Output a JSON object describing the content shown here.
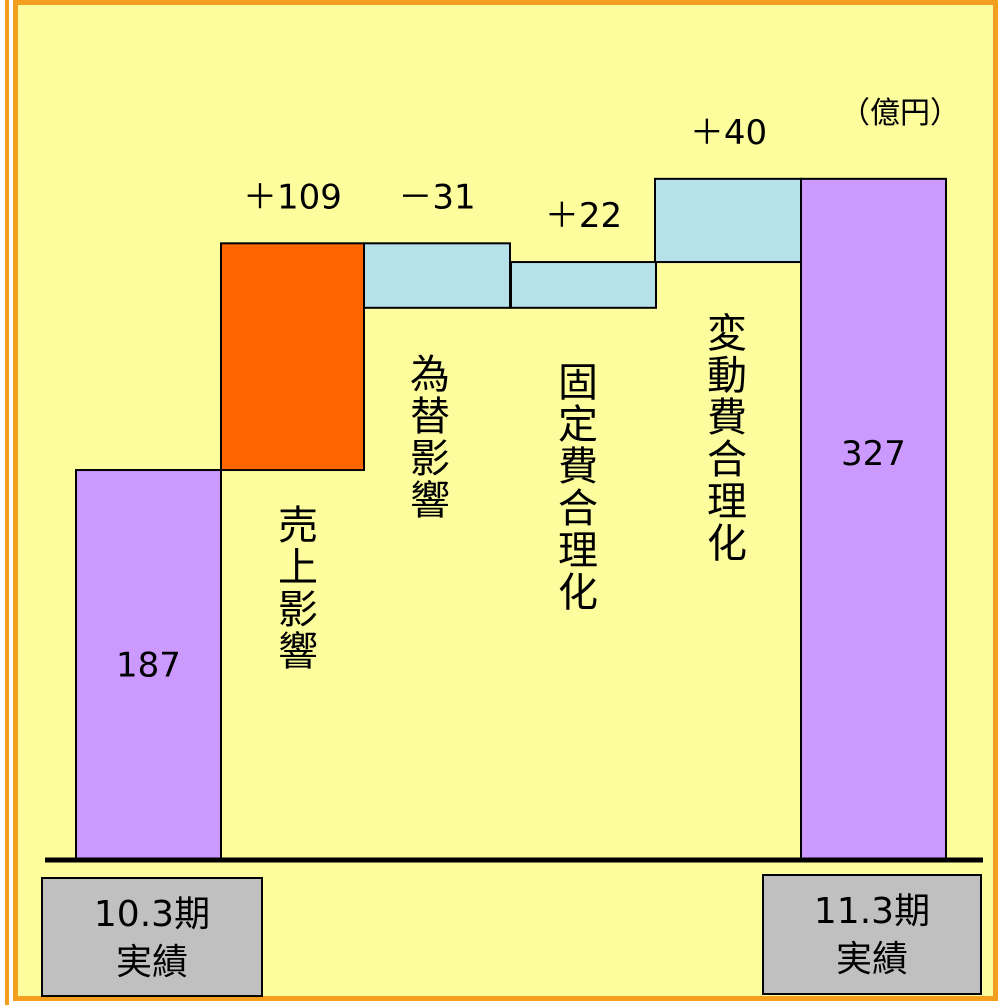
{
  "chart_data": {
    "type": "bar",
    "subtype": "waterfall",
    "unit": "（億円）",
    "steps": [
      {
        "kind": "total",
        "value": 187,
        "label": "187",
        "category": [
          "10.3期",
          "実績"
        ],
        "color": "#cc99ff"
      },
      {
        "kind": "delta",
        "value": 109,
        "label": "＋109",
        "name": "売上影響",
        "color": "#ff6600"
      },
      {
        "kind": "delta",
        "value": -31,
        "label": "－31",
        "name": "為替影響",
        "color": "#b7e1e8"
      },
      {
        "kind": "delta",
        "value": 22,
        "label": "＋22",
        "name": "固定費合理化",
        "color": "#b7e1e8"
      },
      {
        "kind": "delta",
        "value": 40,
        "label": "＋40",
        "name": "変動費合理化",
        "color": "#b7e1e8"
      },
      {
        "kind": "total",
        "value": 327,
        "label": "327",
        "category": [
          "11.3期",
          "実績"
        ],
        "color": "#cc99ff"
      }
    ]
  }
}
